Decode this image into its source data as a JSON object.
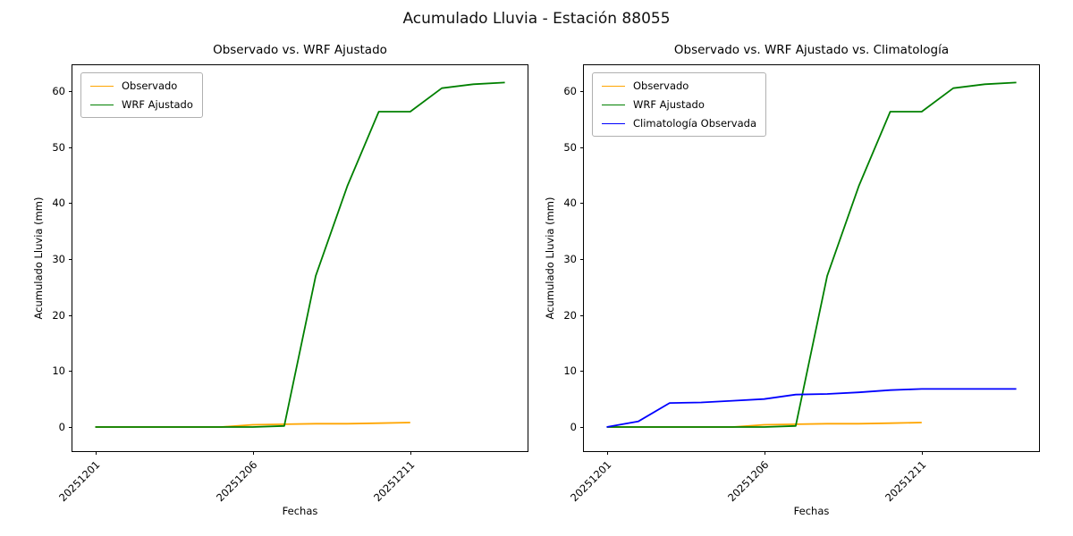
{
  "figure": {
    "suptitle": "Acumulado Lluvia - Estación 88055"
  },
  "chart_data": [
    {
      "type": "line",
      "title": "Observado vs. WRF Ajustado",
      "xlabel": "Fechas",
      "ylabel": "Acumulado Lluvia (mm)",
      "x": [
        "20251201",
        "20251202",
        "20251203",
        "20251204",
        "20251205",
        "20251206",
        "20251207",
        "20251208",
        "20251209",
        "20251210",
        "20251211",
        "20251212",
        "20251213",
        "20251214"
      ],
      "xtick_indices": [
        0,
        5,
        10
      ],
      "yticks": [
        0,
        10,
        20,
        30,
        40,
        50,
        60
      ],
      "ylim": [
        -4.3,
        64.6
      ],
      "grid": false,
      "legend_position": "upper-left",
      "series": [
        {
          "name": "Observado",
          "color": "#ffa500",
          "values": [
            0,
            0,
            0,
            0,
            0,
            0.4,
            0.5,
            0.6,
            0.6,
            0.7,
            0.8
          ]
        },
        {
          "name": "WRF Ajustado",
          "color": "#008000",
          "values": [
            0,
            0,
            0,
            0,
            0,
            0,
            0.2,
            27,
            43,
            56.3,
            56.3,
            60.5,
            61.2,
            61.5
          ]
        }
      ]
    },
    {
      "type": "line",
      "title": "Observado vs. WRF Ajustado vs. Climatología",
      "xlabel": "Fechas",
      "ylabel": "Acumulado Lluvia (mm)",
      "x": [
        "20251201",
        "20251202",
        "20251203",
        "20251204",
        "20251205",
        "20251206",
        "20251207",
        "20251208",
        "20251209",
        "20251210",
        "20251211",
        "20251212",
        "20251213",
        "20251214"
      ],
      "xtick_indices": [
        0,
        5,
        10
      ],
      "yticks": [
        0,
        10,
        20,
        30,
        40,
        50,
        60
      ],
      "ylim": [
        -4.3,
        64.6
      ],
      "grid": false,
      "legend_position": "upper-left",
      "series": [
        {
          "name": "Observado",
          "color": "#ffa500",
          "values": [
            0,
            0,
            0,
            0,
            0,
            0.4,
            0.5,
            0.6,
            0.6,
            0.7,
            0.8
          ]
        },
        {
          "name": "WRF Ajustado",
          "color": "#008000",
          "values": [
            0,
            0,
            0,
            0,
            0,
            0,
            0.2,
            27,
            43,
            56.3,
            56.3,
            60.5,
            61.2,
            61.5
          ]
        },
        {
          "name": "Climatología Observada",
          "color": "#0000ff",
          "values": [
            0,
            1,
            4.3,
            4.4,
            4.7,
            5.0,
            5.8,
            5.9,
            6.2,
            6.6,
            6.8,
            6.8,
            6.8,
            6.8
          ]
        }
      ]
    }
  ]
}
